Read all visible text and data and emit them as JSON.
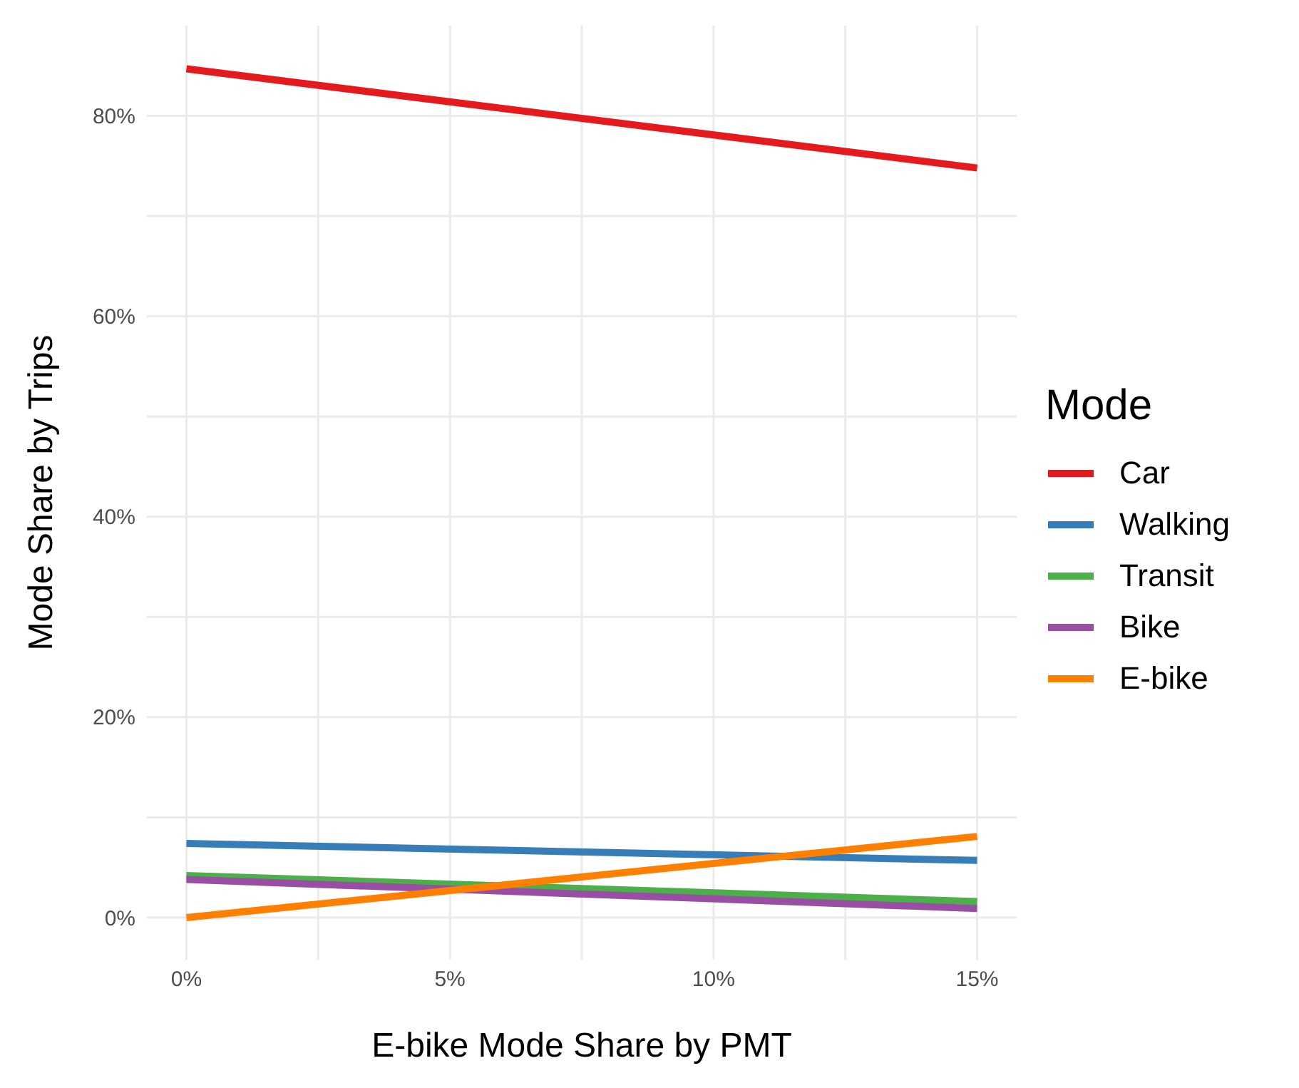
{
  "chart_data": {
    "type": "line",
    "xlabel": "E-bike Mode Share by PMT",
    "ylabel": "Mode Share by Trips",
    "legend_title": "Mode",
    "legend": "right",
    "grid": true,
    "marker": "none",
    "line_style": "solid",
    "x": [
      0,
      15
    ],
    "xlim": [
      -0.75,
      15.75
    ],
    "xticks": [
      {
        "value": 0,
        "label": "0%"
      },
      {
        "value": 2.5,
        "label": null
      },
      {
        "value": 5,
        "label": "5%"
      },
      {
        "value": 7.5,
        "label": null
      },
      {
        "value": 10,
        "label": "10%"
      },
      {
        "value": 12.5,
        "label": null
      },
      {
        "value": 15,
        "label": "15%"
      }
    ],
    "ylim": [
      -4.2,
      89
    ],
    "yticks": [
      {
        "value": 0,
        "label": "0%"
      },
      {
        "value": 10,
        "label": null
      },
      {
        "value": 20,
        "label": "20%"
      },
      {
        "value": 30,
        "label": null
      },
      {
        "value": 40,
        "label": "40%"
      },
      {
        "value": 50,
        "label": null
      },
      {
        "value": 60,
        "label": "60%"
      },
      {
        "value": 70,
        "label": null
      },
      {
        "value": 80,
        "label": "80%"
      }
    ],
    "series": [
      {
        "name": "Car",
        "color": "#e41a1c",
        "values": [
          84.7,
          74.8
        ]
      },
      {
        "name": "Walking",
        "color": "#377eb8",
        "values": [
          7.4,
          5.7
        ]
      },
      {
        "name": "Transit",
        "color": "#4daf4a",
        "values": [
          4.2,
          1.6
        ]
      },
      {
        "name": "Bike",
        "color": "#984ea3",
        "values": [
          3.8,
          0.9
        ]
      },
      {
        "name": "E-bike",
        "color": "#ff7f00",
        "values": [
          0,
          8.1
        ]
      }
    ]
  }
}
